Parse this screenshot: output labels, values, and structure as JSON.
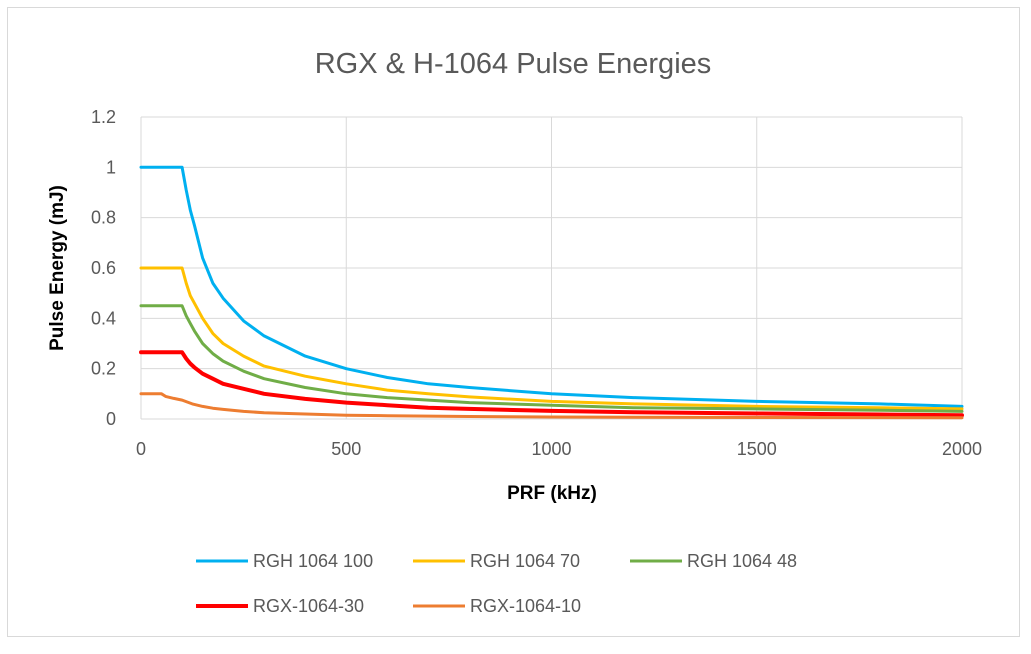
{
  "chart_data": {
    "type": "line",
    "title": "RGX & H-1064 Pulse Energies",
    "xlabel": "PRF (kHz)",
    "ylabel": "Pulse Energy (mJ)",
    "xlim": [
      0,
      2000
    ],
    "ylim": [
      0,
      1.2
    ],
    "xticks": [
      "0",
      "500",
      "1000",
      "1500",
      "2000"
    ],
    "yticks": [
      "0",
      "0.2",
      "0.4",
      "0.6",
      "0.8",
      "1",
      "1.2"
    ],
    "grid": true,
    "legend_position": "bottom",
    "series": [
      {
        "name": "RGH 1064 100",
        "color": "#00B0F0",
        "x": [
          0,
          100,
          110,
          120,
          130,
          150,
          175,
          200,
          250,
          300,
          400,
          500,
          600,
          700,
          800,
          1000,
          1200,
          1500,
          1800,
          2000
        ],
        "y": [
          1.0,
          1.0,
          0.91,
          0.83,
          0.77,
          0.64,
          0.54,
          0.48,
          0.39,
          0.33,
          0.25,
          0.2,
          0.165,
          0.14,
          0.125,
          0.1,
          0.085,
          0.07,
          0.06,
          0.05
        ]
      },
      {
        "name": "RGH 1064 70",
        "color": "#FFC000",
        "x": [
          0,
          100,
          110,
          120,
          130,
          150,
          175,
          200,
          250,
          300,
          400,
          500,
          600,
          700,
          800,
          1000,
          1200,
          1500,
          1800,
          2000
        ],
        "y": [
          0.6,
          0.6,
          0.54,
          0.49,
          0.46,
          0.4,
          0.34,
          0.3,
          0.25,
          0.21,
          0.17,
          0.14,
          0.115,
          0.1,
          0.088,
          0.07,
          0.06,
          0.05,
          0.045,
          0.04
        ]
      },
      {
        "name": "RGH 1064 48",
        "color": "#70AD47",
        "x": [
          0,
          100,
          110,
          120,
          130,
          150,
          175,
          200,
          250,
          300,
          400,
          500,
          600,
          700,
          800,
          1000,
          1200,
          1500,
          1800,
          2000
        ],
        "y": [
          0.45,
          0.45,
          0.41,
          0.38,
          0.35,
          0.3,
          0.26,
          0.23,
          0.19,
          0.16,
          0.125,
          0.1,
          0.085,
          0.075,
          0.065,
          0.055,
          0.045,
          0.04,
          0.035,
          0.03
        ]
      },
      {
        "name": "RGX-1064-30",
        "color": "#FF0000",
        "x": [
          0,
          100,
          110,
          120,
          130,
          150,
          175,
          200,
          250,
          300,
          400,
          500,
          600,
          700,
          800,
          1000,
          1200,
          1500,
          1800,
          2000
        ],
        "y": [
          0.265,
          0.265,
          0.24,
          0.22,
          0.205,
          0.18,
          0.16,
          0.14,
          0.12,
          0.1,
          0.08,
          0.065,
          0.055,
          0.045,
          0.04,
          0.032,
          0.027,
          0.022,
          0.018,
          0.015
        ]
      },
      {
        "name": "RGX-1064-10",
        "color": "#ED7D31",
        "x": [
          0,
          50,
          60,
          80,
          100,
          125,
          150,
          175,
          200,
          250,
          300,
          400,
          500,
          600,
          800,
          1000,
          1500,
          2000
        ],
        "y": [
          0.1,
          0.1,
          0.09,
          0.082,
          0.075,
          0.06,
          0.05,
          0.043,
          0.038,
          0.03,
          0.025,
          0.02,
          0.015,
          0.013,
          0.01,
          0.008,
          0.006,
          0.005
        ]
      }
    ]
  }
}
